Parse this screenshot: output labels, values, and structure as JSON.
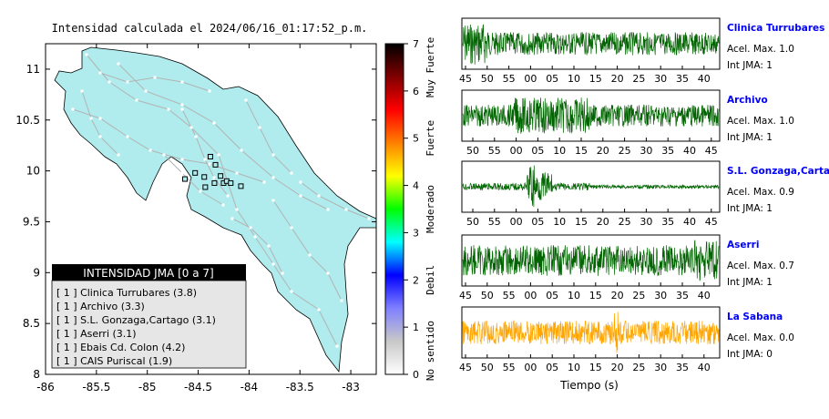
{
  "title": "Intensidad calculada el 2024/06/16_01:17:52_p.m.",
  "map": {
    "x_ticks": [
      "-86",
      "-85.5",
      "-85",
      "-84.5",
      "-84",
      "-83.5",
      "-83"
    ],
    "y_ticks": [
      "11",
      "10.5",
      "10",
      "9.5",
      "9",
      "8.5",
      "8"
    ],
    "land_color": "#b0eced",
    "road_color": "#b3b3b3",
    "station_markers": [
      {
        "lon": -84.63,
        "lat": 9.92
      },
      {
        "lon": -84.53,
        "lat": 9.98
      },
      {
        "lon": -84.44,
        "lat": 9.94
      },
      {
        "lon": -84.38,
        "lat": 10.14
      },
      {
        "lon": -84.33,
        "lat": 10.06
      },
      {
        "lon": -84.34,
        "lat": 9.88
      },
      {
        "lon": -84.28,
        "lat": 9.95
      },
      {
        "lon": -84.25,
        "lat": 9.88
      },
      {
        "lon": -84.22,
        "lat": 9.9
      },
      {
        "lon": -84.18,
        "lat": 9.88
      },
      {
        "lon": -84.43,
        "lat": 9.84
      },
      {
        "lon": -84.08,
        "lat": 9.85
      }
    ]
  },
  "legend": {
    "header": "INTENSIDAD JMA [0 a 7]",
    "items": [
      "[ 1 ]  Clinica Turrubares (3.8)",
      "[ 1 ]  Archivo (3.3)",
      "[ 1 ]  S.L. Gonzaga,Cartago (3.1)",
      "[ 1 ]  Aserri (3.1)",
      "[ 1 ]  Ebais Cd. Colon (4.2)",
      "[ 1 ]  CAIS Puriscal (1.9)"
    ]
  },
  "colorbar": {
    "ticks": [
      "0",
      "1",
      "2",
      "3",
      "4",
      "5",
      "6",
      "7"
    ],
    "class_labels": [
      "No sentido",
      "Debil",
      "Moderado",
      "Fuerte",
      "Muy Fuerte"
    ],
    "colors": [
      "#ffffff",
      "#c8c8c8",
      "#8080ff",
      "#0000ff",
      "#00ffff",
      "#00ff00",
      "#ffff00",
      "#ff8000",
      "#ff0000",
      "#800000",
      "#000000"
    ]
  },
  "traces": [
    {
      "station": "Clinica Turrubares",
      "accel": "Acel. Max. 1.0",
      "int": "Int JMA: 1",
      "color": "#006400",
      "ticks": [
        "45",
        "50",
        "55",
        "00",
        "05",
        "10",
        "15",
        "20",
        "25",
        "30",
        "35",
        "40"
      ]
    },
    {
      "station": "Archivo",
      "accel": "Acel. Max. 1.0",
      "int": "Int JMA: 1",
      "color": "#006400",
      "ticks": [
        "50",
        "55",
        "00",
        "05",
        "10",
        "15",
        "20",
        "25",
        "30",
        "35",
        "40",
        "45"
      ]
    },
    {
      "station": "S.L. Gonzaga,Cartago",
      "accel": "Acel. Max. 0.9",
      "int": "Int JMA: 1",
      "color": "#006400",
      "ticks": [
        "50",
        "55",
        "00",
        "05",
        "10",
        "15",
        "20",
        "25",
        "30",
        "35",
        "40",
        "45"
      ]
    },
    {
      "station": "Aserri",
      "accel": "Acel. Max. 0.7",
      "int": "Int JMA: 1",
      "color": "#006400",
      "ticks": [
        "45",
        "50",
        "55",
        "00",
        "05",
        "10",
        "15",
        "20",
        "25",
        "30",
        "35",
        "40"
      ]
    },
    {
      "station": "La Sabana",
      "accel": "Acel. Max. 0.0",
      "int": "Int JMA: 0",
      "color": "#ffa500",
      "ticks": [
        "45",
        "50",
        "55",
        "00",
        "05",
        "10",
        "15",
        "20",
        "25",
        "30",
        "35",
        "40"
      ]
    }
  ],
  "time_axis_label": "Tiempo (s)",
  "station_label_color": "#0000ff"
}
